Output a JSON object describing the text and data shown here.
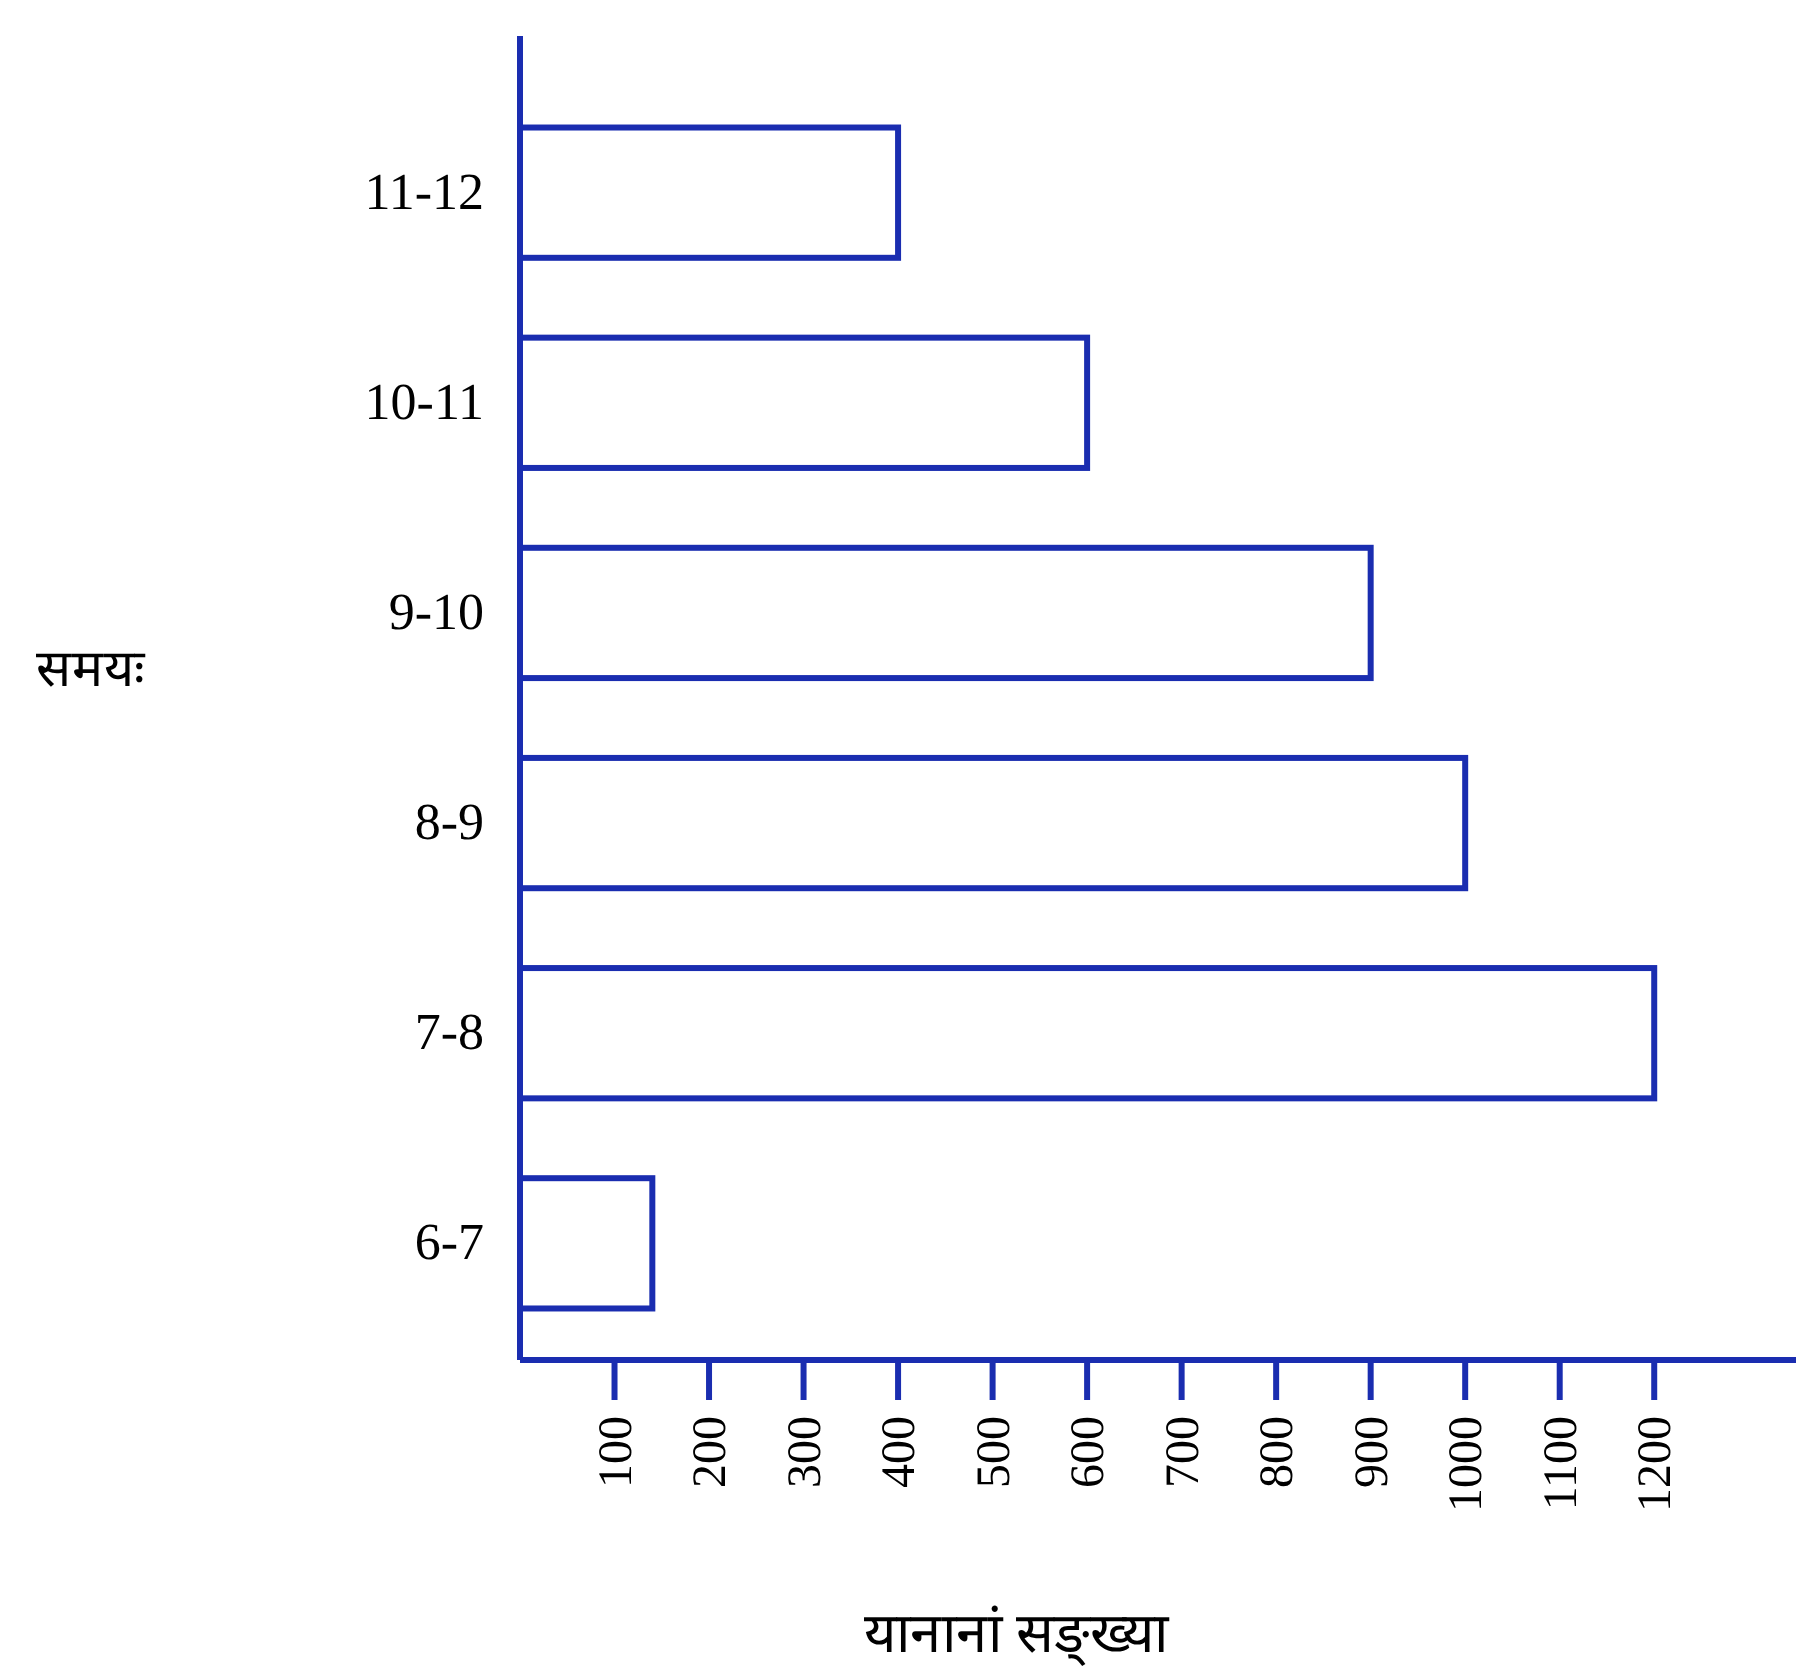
{
  "chart_data": {
    "type": "bar",
    "orientation": "horizontal",
    "xlabel": "यानानां सङ्ख्या",
    "ylabel": "समयः",
    "categories": [
      "11-12",
      "10-11",
      "9-10",
      "8-9",
      "7-8",
      "6-7"
    ],
    "values": [
      400,
      600,
      900,
      1000,
      1200,
      140
    ],
    "color": "#1a2db0",
    "xlim": [
      0,
      1350
    ],
    "xticks": [
      100,
      200,
      300,
      400,
      500,
      600,
      700,
      800,
      900,
      1000,
      1100,
      1200
    ]
  }
}
